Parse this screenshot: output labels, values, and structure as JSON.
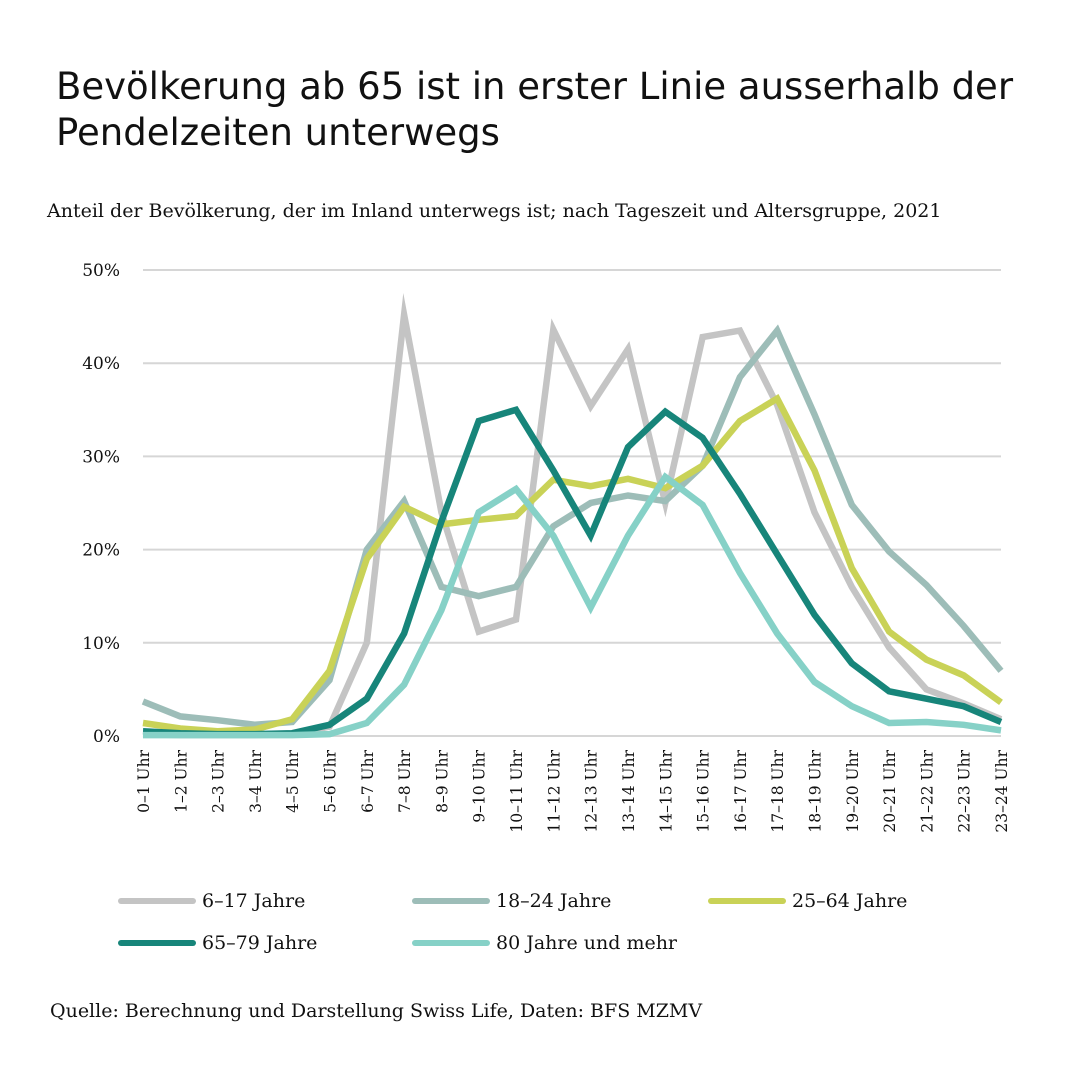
{
  "header": {
    "title_line1": "Bevölkerung ab 65 ist in erster Linie ausserhalb der",
    "title_line2": "Pendelzeiten unterwegs",
    "subtitle": "Anteil der Bevölkerung, der im Inland unterwegs ist; nach Tageszeit und Altersgruppe, 2021"
  },
  "footer": {
    "source": "Quelle: Berechnung und Darstellung Swiss Life, Daten: BFS MZMV"
  },
  "chart_data": {
    "type": "line",
    "title": "Bevölkerung ab 65 ist in erster Linie ausserhalb der Pendelzeiten unterwegs",
    "subtitle": "Anteil der Bevölkerung, der im Inland unterwegs ist; nach Tageszeit und Altersgruppe, 2021",
    "xlabel": "",
    "ylabel": "",
    "ylim": [
      0,
      50
    ],
    "yticks": [
      0,
      10,
      20,
      30,
      40,
      50
    ],
    "ytick_labels": [
      "0%",
      "10%",
      "20%",
      "30%",
      "40%",
      "50%"
    ],
    "grid": true,
    "legend_position": "bottom",
    "categories": [
      "0–1 Uhr",
      "1–2 Uhr",
      "2–3 Uhr",
      "3–4 Uhr",
      "4–5 Uhr",
      "5–6 Uhr",
      "6–7 Uhr",
      "7–8 Uhr",
      "8–9 Uhr",
      "9–10 Uhr",
      "10–11 Uhr",
      "11–12 Uhr",
      "12–13 Uhr",
      "13–14 Uhr",
      "14–15 Uhr",
      "15–16 Uhr",
      "16–17 Uhr",
      "17–18 Uhr",
      "18–19 Uhr",
      "19–20 Uhr",
      "20–21 Uhr",
      "21–22 Uhr",
      "22–23 Uhr",
      "23–24 Uhr"
    ],
    "series": [
      {
        "name": "6–17 Jahre",
        "color": "#c4c4c4",
        "values": [
          0.2,
          0.1,
          0.1,
          0.1,
          0.2,
          1.0,
          10.0,
          45.2,
          24.0,
          11.2,
          12.5,
          43.6,
          35.4,
          41.5,
          25.0,
          42.8,
          43.5,
          35.5,
          24.0,
          16.0,
          9.5,
          5.0,
          3.5,
          1.8
        ]
      },
      {
        "name": "18–24 Jahre",
        "color": "#9dbdb8",
        "values": [
          3.7,
          2.1,
          1.7,
          1.2,
          1.5,
          6.0,
          20.0,
          25.2,
          16.0,
          15.0,
          16.0,
          22.5,
          25.0,
          25.8,
          25.2,
          29.0,
          38.5,
          43.5,
          34.5,
          24.8,
          19.8,
          16.2,
          11.8,
          7.0
        ]
      },
      {
        "name": "25–64 Jahre",
        "color": "#c9d257",
        "values": [
          1.4,
          0.8,
          0.5,
          0.7,
          1.8,
          7.0,
          19.0,
          24.6,
          22.7,
          23.2,
          23.6,
          27.5,
          26.8,
          27.6,
          26.6,
          29.0,
          33.8,
          36.2,
          28.5,
          18.0,
          11.2,
          8.2,
          6.5,
          3.6
        ]
      },
      {
        "name": "65–79 Jahre",
        "color": "#17857a",
        "values": [
          0.5,
          0.3,
          0.2,
          0.2,
          0.3,
          1.2,
          4.0,
          11.0,
          23.0,
          33.8,
          35.0,
          28.5,
          21.5,
          31.0,
          34.8,
          32.0,
          26.0,
          19.5,
          13.0,
          7.8,
          4.8,
          4.0,
          3.2,
          1.5
        ]
      },
      {
        "name": "80 Jahre und mehr",
        "color": "#86d1c7",
        "values": [
          0.1,
          0.1,
          0.1,
          0.1,
          0.1,
          0.2,
          1.4,
          5.5,
          13.5,
          24.0,
          26.5,
          21.5,
          13.8,
          21.5,
          27.8,
          24.8,
          17.5,
          11.0,
          5.8,
          3.2,
          1.4,
          1.5,
          1.2,
          0.6
        ]
      }
    ]
  }
}
